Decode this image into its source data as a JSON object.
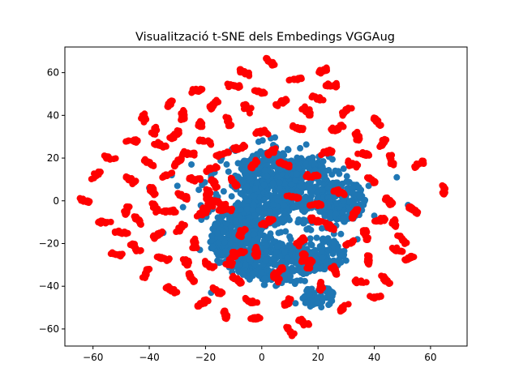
{
  "window": {
    "title": "Visualització t-SNE dels Embedings VGGAug"
  },
  "chart_data": {
    "type": "scatter",
    "title": "Visualització t-SNE dels Embedings VGGAug",
    "xlabel": "",
    "ylabel": "",
    "xlim": [
      -70,
      73
    ],
    "ylim": [
      -68,
      72
    ],
    "xticks": [
      -60,
      -40,
      -20,
      0,
      20,
      40,
      60
    ],
    "yticks": [
      -60,
      -40,
      -20,
      0,
      20,
      40,
      60
    ],
    "grid": false,
    "legend": "none",
    "series": [
      {
        "color": "#1f77b4",
        "regions": [
          {
            "cx": 3,
            "cy": 12,
            "rx": 12,
            "ry": 11,
            "n": 260
          },
          {
            "cx": 15,
            "cy": 8,
            "rx": 10,
            "ry": 12,
            "n": 200
          },
          {
            "cx": -8,
            "cy": -18,
            "rx": 10,
            "ry": 16,
            "n": 260
          },
          {
            "cx": 6,
            "cy": -30,
            "rx": 15,
            "ry": 10,
            "n": 220
          },
          {
            "cx": 28,
            "cy": 0,
            "rx": 9,
            "ry": 10,
            "n": 160
          },
          {
            "cx": 20,
            "cy": -45,
            "rx": 6,
            "ry": 5,
            "n": 50
          },
          {
            "cx": -14,
            "cy": -18,
            "rx": 5,
            "ry": 8,
            "n": 70
          },
          {
            "cx": 0,
            "cy": -5,
            "rx": 10,
            "ry": 8,
            "n": 150
          },
          {
            "cx": 20,
            "cy": -25,
            "rx": 10,
            "ry": 8,
            "n": 120
          },
          {
            "cx": 5,
            "cy": 0,
            "rx": 28,
            "ry": 30,
            "n": 260
          }
        ],
        "points": [
          [
            48,
            11
          ],
          [
            52,
            -2
          ],
          [
            -30,
            7
          ],
          [
            -35,
            -15
          ],
          [
            -28,
            -3
          ],
          [
            -22,
            -23
          ],
          [
            -32,
            12
          ],
          [
            -25,
            17
          ],
          [
            40,
            -7
          ],
          [
            -18,
            -43
          ],
          [
            30,
            -28
          ],
          [
            34,
            -18
          ],
          [
            -40,
            6
          ],
          [
            12,
            -48
          ],
          [
            38,
            7
          ]
        ]
      },
      {
        "color": "#ff0000",
        "cluster_size": [
          2.4,
          1.2
        ],
        "clusters": [
          [
            -63,
            0
          ],
          [
            -59,
            12
          ],
          [
            -56,
            -10
          ],
          [
            -54,
            20
          ],
          [
            -52,
            -25
          ],
          [
            -50,
            -15
          ],
          [
            -48,
            -5
          ],
          [
            -47,
            10
          ],
          [
            -46,
            28
          ],
          [
            -45,
            -22
          ],
          [
            -44,
            -9
          ],
          [
            -42,
            39
          ],
          [
            -41,
            -34
          ],
          [
            -40,
            18
          ],
          [
            -39,
            5
          ],
          [
            -38,
            -3
          ],
          [
            -38,
            33
          ],
          [
            -37,
            -16
          ],
          [
            -36,
            26
          ],
          [
            -35,
            -27
          ],
          [
            -34,
            12
          ],
          [
            -33,
            -5
          ],
          [
            -33,
            45
          ],
          [
            -32,
            -42
          ],
          [
            -31,
            31
          ],
          [
            -30,
            18
          ],
          [
            -29,
            -13
          ],
          [
            -28,
            2
          ],
          [
            -28,
            40
          ],
          [
            -27,
            -28
          ],
          [
            -26,
            22
          ],
          [
            -25,
            -36
          ],
          [
            -24,
            10
          ],
          [
            -24,
            -20
          ],
          [
            -23,
            52
          ],
          [
            -22,
            35
          ],
          [
            -21,
            -6
          ],
          [
            -21,
            -48
          ],
          [
            -20,
            28
          ],
          [
            -19,
            -30
          ],
          [
            -19,
            3
          ],
          [
            -18,
            15
          ],
          [
            -17,
            45
          ],
          [
            -16,
            -42
          ],
          [
            -15,
            -1
          ],
          [
            -14,
            22
          ],
          [
            -13,
            -53
          ],
          [
            -12,
            37
          ],
          [
            -11,
            -28
          ],
          [
            -10,
            9
          ],
          [
            -10,
            54
          ],
          [
            -9,
            -37
          ],
          [
            -8,
            25
          ],
          [
            -7,
            -15
          ],
          [
            -6,
            60
          ],
          [
            -5,
            43
          ],
          [
            -4,
            -47
          ],
          [
            -3,
            17
          ],
          [
            -2,
            -24
          ],
          [
            -1,
            51
          ],
          [
            0,
            32
          ],
          [
            2,
            -10
          ],
          [
            3,
            65
          ],
          [
            4,
            23
          ],
          [
            5,
            -36
          ],
          [
            7,
            46
          ],
          [
            8,
            17
          ],
          [
            9,
            -48
          ],
          [
            10,
            -61
          ],
          [
            11,
            2
          ],
          [
            12,
            57
          ],
          [
            13,
            34
          ],
          [
            14,
            -19
          ],
          [
            15,
            -57
          ],
          [
            16,
            42
          ],
          [
            17,
            -30
          ],
          [
            18,
            12
          ],
          [
            19,
            -2
          ],
          [
            20,
            48
          ],
          [
            21,
            -40
          ],
          [
            22,
            61
          ],
          [
            23,
            23
          ],
          [
            24,
            -12
          ],
          [
            25,
            54
          ],
          [
            26,
            -33
          ],
          [
            27,
            34
          ],
          [
            28,
            4
          ],
          [
            29,
            -50
          ],
          [
            30,
            42
          ],
          [
            31,
            -20
          ],
          [
            32,
            17
          ],
          [
            33,
            -6
          ],
          [
            34,
            30
          ],
          [
            35,
            -38
          ],
          [
            36,
            22
          ],
          [
            37,
            -16
          ],
          [
            38,
            -28
          ],
          [
            39,
            10
          ],
          [
            40,
            -45
          ],
          [
            41,
            37
          ],
          [
            42,
            -9
          ],
          [
            43,
            27
          ],
          [
            44,
            -37
          ],
          [
            45,
            0
          ],
          [
            46,
            19
          ],
          [
            47,
            -10
          ],
          [
            48,
            -23
          ],
          [
            50,
            -18
          ],
          [
            52,
            -27
          ],
          [
            54,
            -4
          ],
          [
            56,
            17
          ],
          [
            65,
            5
          ],
          [
            -8,
            -24
          ],
          [
            -2,
            -55
          ],
          [
            6,
            -33
          ],
          [
            15,
            -26
          ],
          [
            19,
            -9
          ],
          [
            -19,
            -3
          ],
          [
            -17,
            8
          ],
          [
            -13,
            -4
          ]
        ]
      }
    ]
  }
}
